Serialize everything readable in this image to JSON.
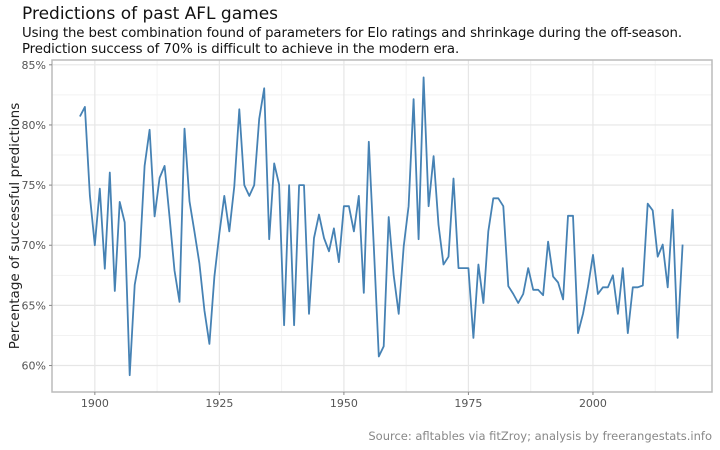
{
  "title": "Predictions of past AFL games",
  "subtitle_lines": [
    "Using the best combination found of parameters for Elo ratings and shrinkage during the off-season.",
    "Prediction success of 70% is difficult to achieve in the modern era."
  ],
  "caption": "Source: afltables via fitZroy; analysis by freerangestats.info",
  "chart_data": {
    "type": "line",
    "title": "Predictions of past AFL games",
    "xlabel": "",
    "ylabel": "Percentage of successful predictions",
    "xlim": [
      1891.4,
      2023.9
    ],
    "ylim": [
      57.8,
      85.4
    ],
    "x_ticks": [
      1900,
      1925,
      1950,
      1975,
      2000
    ],
    "x_tick_labels": [
      "1900",
      "1925",
      "1950",
      "1975",
      "2000"
    ],
    "y_ticks": [
      60,
      65,
      70,
      75,
      80,
      85
    ],
    "y_tick_labels": [
      "60%",
      "65%",
      "70%",
      "75%",
      "80%",
      "85%"
    ],
    "grid": true,
    "line_color": "#4682B4",
    "x_start": 1897,
    "values": [
      80.7,
      81.5,
      74.1,
      70.0,
      74.7,
      68.05,
      76.05,
      66.2,
      73.6,
      71.9,
      59.2,
      66.7,
      69.05,
      76.6,
      79.6,
      72.4,
      75.6,
      76.6,
      72.3,
      67.9,
      65.3,
      79.7,
      73.65,
      71.1,
      68.5,
      64.6,
      61.8,
      67.4,
      71.0,
      74.1,
      71.15,
      74.9,
      81.3,
      75.0,
      74.1,
      75.0,
      80.5,
      83.05,
      70.5,
      76.8,
      75.05,
      63.35,
      75.0,
      63.35,
      75.0,
      75.0,
      64.3,
      70.6,
      72.55,
      70.6,
      69.5,
      71.4,
      68.6,
      73.25,
      73.25,
      71.15,
      74.1,
      66.05,
      78.6,
      69.9,
      60.75,
      61.6,
      72.35,
      67.5,
      64.3,
      69.9,
      73.25,
      82.15,
      70.5,
      83.95,
      73.25,
      77.4,
      71.7,
      68.4,
      69.05,
      75.55,
      68.1,
      68.1,
      68.1,
      62.3,
      68.4,
      65.2,
      71.15,
      73.9,
      73.9,
      73.25,
      66.6,
      65.95,
      65.2,
      65.95,
      68.1,
      66.3,
      66.3,
      65.85,
      70.3,
      67.4,
      66.9,
      65.5,
      72.45,
      72.45,
      62.7,
      64.3,
      66.55,
      69.2,
      65.95,
      66.5,
      66.5,
      67.5,
      64.3,
      68.1,
      62.7,
      66.5,
      66.5,
      66.65,
      73.45,
      72.9,
      69.05,
      70.05,
      66.5,
      72.95,
      62.3,
      70.05
    ]
  }
}
